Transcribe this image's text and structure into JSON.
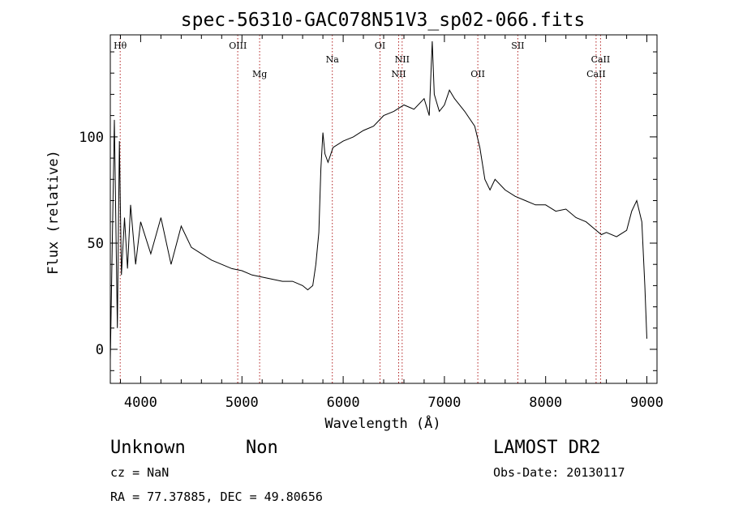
{
  "chart_data": {
    "type": "line",
    "title": "spec-56310-GAC078N51V3_sp02-066.fits",
    "xlabel": "Wavelength (Å)",
    "ylabel": "Flux (relative)",
    "xlim": [
      3700,
      9100
    ],
    "ylim": [
      -16,
      148
    ],
    "grid": false,
    "x_ticks": [
      4000,
      5000,
      6000,
      7000,
      8000,
      9000
    ],
    "x_tick_labels": [
      "4000",
      "5000",
      "6000",
      "7000",
      "8000",
      "9000"
    ],
    "y_ticks": [
      0,
      50,
      100
    ],
    "y_tick_labels": [
      "0",
      "50",
      "100"
    ],
    "series": [
      {
        "color": "#000000",
        "x": [
          3700,
          3740,
          3770,
          3790,
          3810,
          3840,
          3870,
          3900,
          3950,
          4000,
          4100,
          4200,
          4300,
          4400,
          4500,
          4600,
          4700,
          4800,
          4900,
          5000,
          5100,
          5200,
          5300,
          5400,
          5500,
          5600,
          5650,
          5700,
          5730,
          5760,
          5780,
          5800,
          5820,
          5850,
          5900,
          6000,
          6100,
          6200,
          6300,
          6400,
          6500,
          6600,
          6700,
          6800,
          6850,
          6880,
          6900,
          6950,
          7000,
          7050,
          7100,
          7200,
          7300,
          7350,
          7400,
          7450,
          7500,
          7600,
          7700,
          7800,
          7900,
          8000,
          8100,
          8200,
          8300,
          8400,
          8500,
          8550,
          8600,
          8700,
          8800,
          8850,
          8900,
          8950,
          8980,
          9000
        ],
        "y": [
          -5,
          108,
          10,
          98,
          35,
          62,
          38,
          68,
          40,
          60,
          45,
          62,
          40,
          58,
          48,
          45,
          42,
          40,
          38,
          37,
          35,
          34,
          33,
          32,
          32,
          30,
          28,
          30,
          40,
          55,
          85,
          102,
          92,
          88,
          95,
          98,
          100,
          103,
          105,
          110,
          112,
          115,
          113,
          118,
          110,
          145,
          120,
          112,
          115,
          122,
          118,
          112,
          105,
          95,
          80,
          75,
          80,
          75,
          72,
          70,
          68,
          68,
          65,
          66,
          62,
          60,
          56,
          54,
          55,
          53,
          56,
          65,
          70,
          60,
          30,
          5
        ]
      }
    ],
    "line_labels": [
      {
        "label": "Hθ",
        "x": 3798,
        "row": "top"
      },
      {
        "label": "OIII",
        "x": 4960,
        "row": "top"
      },
      {
        "label": "Mg",
        "x": 5175,
        "row": "low"
      },
      {
        "label": "Na",
        "x": 5893,
        "row": "mid"
      },
      {
        "label": "OI",
        "x": 6364,
        "row": "top"
      },
      {
        "label": "NII",
        "x": 6583,
        "row": "mid"
      },
      {
        "label": "NII",
        "x": 6548,
        "row": "low"
      },
      {
        "label": "OII",
        "x": 7330,
        "row": "low"
      },
      {
        "label": "SII",
        "x": 7725,
        "row": "top"
      },
      {
        "label": "CaII",
        "x": 8542,
        "row": "mid"
      },
      {
        "label": "CaII",
        "x": 8498,
        "row": "low"
      }
    ],
    "emission_lines": [
      3798,
      4959,
      5175,
      5893,
      6364,
      6548,
      6583,
      7330,
      7725,
      8498,
      8542
    ]
  },
  "info": {
    "object_class": "Unknown",
    "subclass": "Non",
    "cz": "cz = NaN",
    "coords": "RA =  77.37885, DEC =  49.80656",
    "survey": "LAMOST DR2",
    "obs_date": "Obs-Date: 20130117"
  }
}
